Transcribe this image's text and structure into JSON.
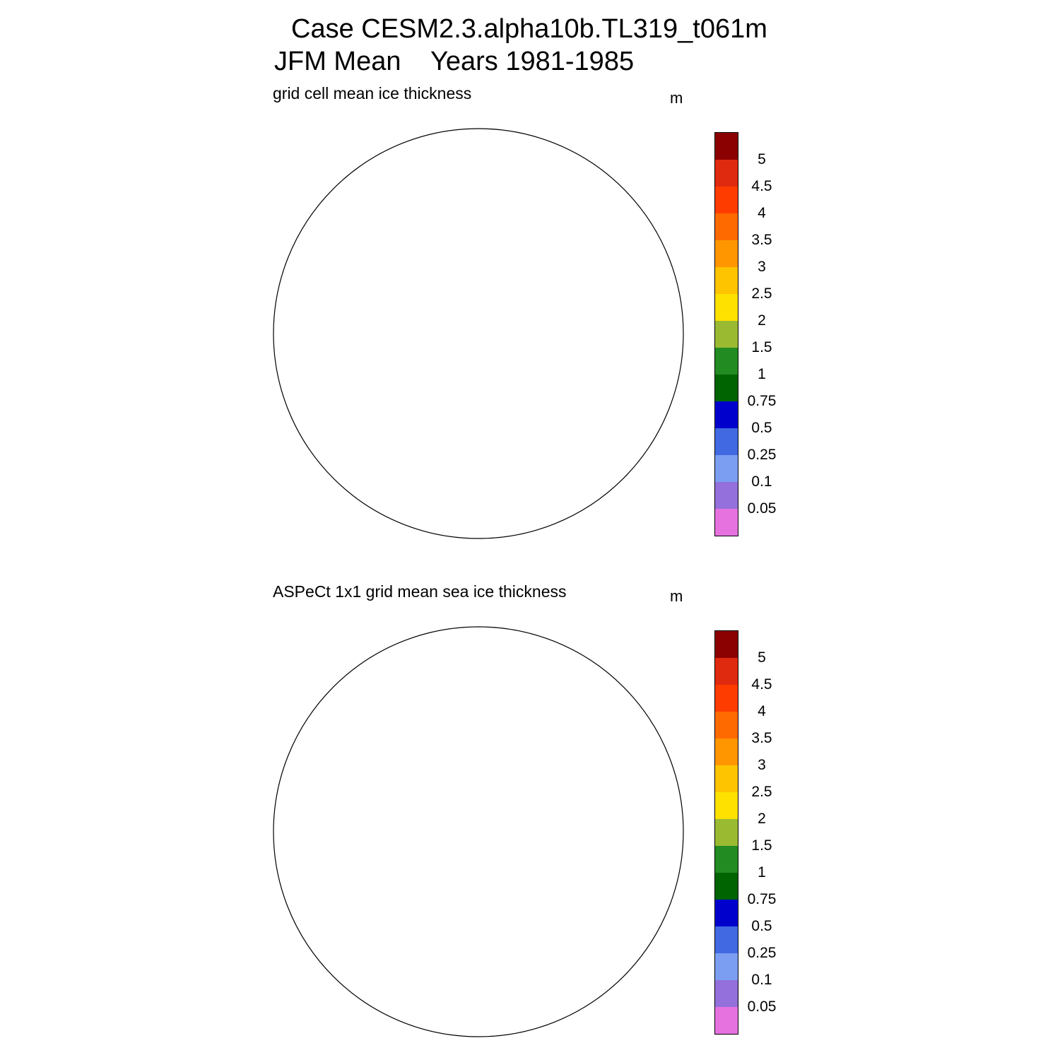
{
  "header": {
    "case_line": "Case CESM2.3.alpha10b.TL319_t061m",
    "period_line": "JFM Mean    Years 1981-1985"
  },
  "legend": {
    "colors": [
      "#e572df",
      "#9370db",
      "#7b9ef2",
      "#4169e1",
      "#0000cd",
      "#006400",
      "#228b22",
      "#9aba32",
      "#ffe100",
      "#ffc400",
      "#ff9600",
      "#ff6a00",
      "#ff3c00",
      "#e02a10",
      "#8b0000"
    ],
    "labels": [
      "0.05",
      "0.1",
      "0.25",
      "0.5",
      "0.75",
      "1",
      "1.5",
      "2",
      "2.5",
      "3",
      "3.5",
      "4",
      "4.5",
      "5"
    ]
  },
  "panels": [
    {
      "title": "grid cell mean ice thickness",
      "units": "m",
      "field": "model"
    },
    {
      "title": "ASPeCt 1x1 grid mean sea ice thickness",
      "units": "m",
      "field": "observations"
    }
  ],
  "map_colors": {
    "land": "#c0c0c0",
    "coast": "#000000",
    "grid": "#555555"
  }
}
